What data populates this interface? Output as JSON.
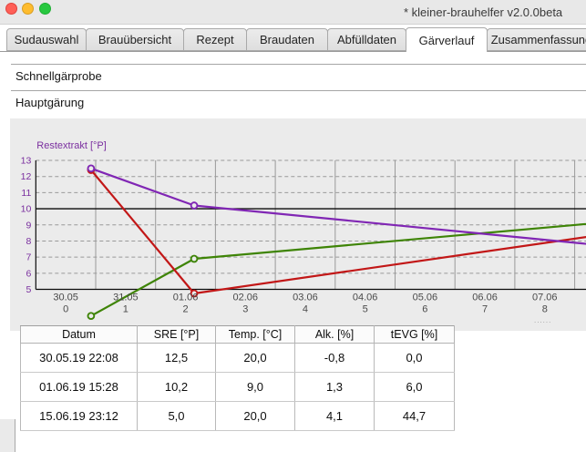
{
  "window": {
    "title": "* kleiner-brauhelfer v2.0.0beta"
  },
  "tabs": {
    "items": [
      "Sudauswahl",
      "Brauübersicht",
      "Rezept",
      "Braudaten",
      "Abfülldaten",
      "Gärverlauf",
      "Zusammenfassung"
    ],
    "active_index": 5
  },
  "sections": {
    "schnellgaerprobe": "Schnellgärprobe",
    "hauptgaerung": "Hauptgärung"
  },
  "chart_data": {
    "type": "line",
    "title": "Restextrakt [°P]",
    "ylabel": "Restextrakt [°P]",
    "y_ticks": [
      13,
      12,
      11,
      10,
      9,
      8,
      7,
      6,
      5
    ],
    "ylim": [
      5,
      13
    ],
    "reference_line_y": 10,
    "x_tick_dates": [
      "30.05",
      "31.05",
      "01.06",
      "02.06",
      "03.06",
      "04.06",
      "05.06",
      "06.06",
      "07.06"
    ],
    "x_tick_days": [
      "0",
      "1",
      "2",
      "3",
      "4",
      "5",
      "6",
      "7",
      "8"
    ],
    "overflow_ellipsis": "......",
    "grid": true,
    "legend_position": "none",
    "series": [
      {
        "name": "SRE [°P]",
        "color": "#8026b4",
        "points": [
          {
            "day": 0.9222,
            "value": 12.5
          },
          {
            "day": 2.6444,
            "value": 10.2
          },
          {
            "day": 16.9667,
            "value": 5.0
          }
        ]
      },
      {
        "name": "Temp. [°C]",
        "color": "#c21717",
        "points": [
          {
            "day": 0.9222,
            "value": 20.0
          },
          {
            "day": 2.6444,
            "value": 9.0
          },
          {
            "day": 16.9667,
            "value": 20.0
          }
        ]
      },
      {
        "name": "Alk. [%]",
        "color": "#3e8406",
        "points": [
          {
            "day": 0.9222,
            "value": -0.8
          },
          {
            "day": 2.6444,
            "value": 1.3
          },
          {
            "day": 16.9667,
            "value": 4.1
          }
        ]
      }
    ]
  },
  "table": {
    "headers": [
      "Datum",
      "SRE [°P]",
      "Temp. [°C]",
      "Alk. [%]",
      "tEVG [%]"
    ],
    "rows": [
      [
        "30.05.19 22:08",
        "12,5",
        "20,0",
        "-0,8",
        "0,0"
      ],
      [
        "01.06.19 15:28",
        "10,2",
        "9,0",
        "1,3",
        "6,0"
      ],
      [
        "15.06.19 23:12",
        "5,0",
        "20,0",
        "4,1",
        "44,7"
      ]
    ]
  }
}
